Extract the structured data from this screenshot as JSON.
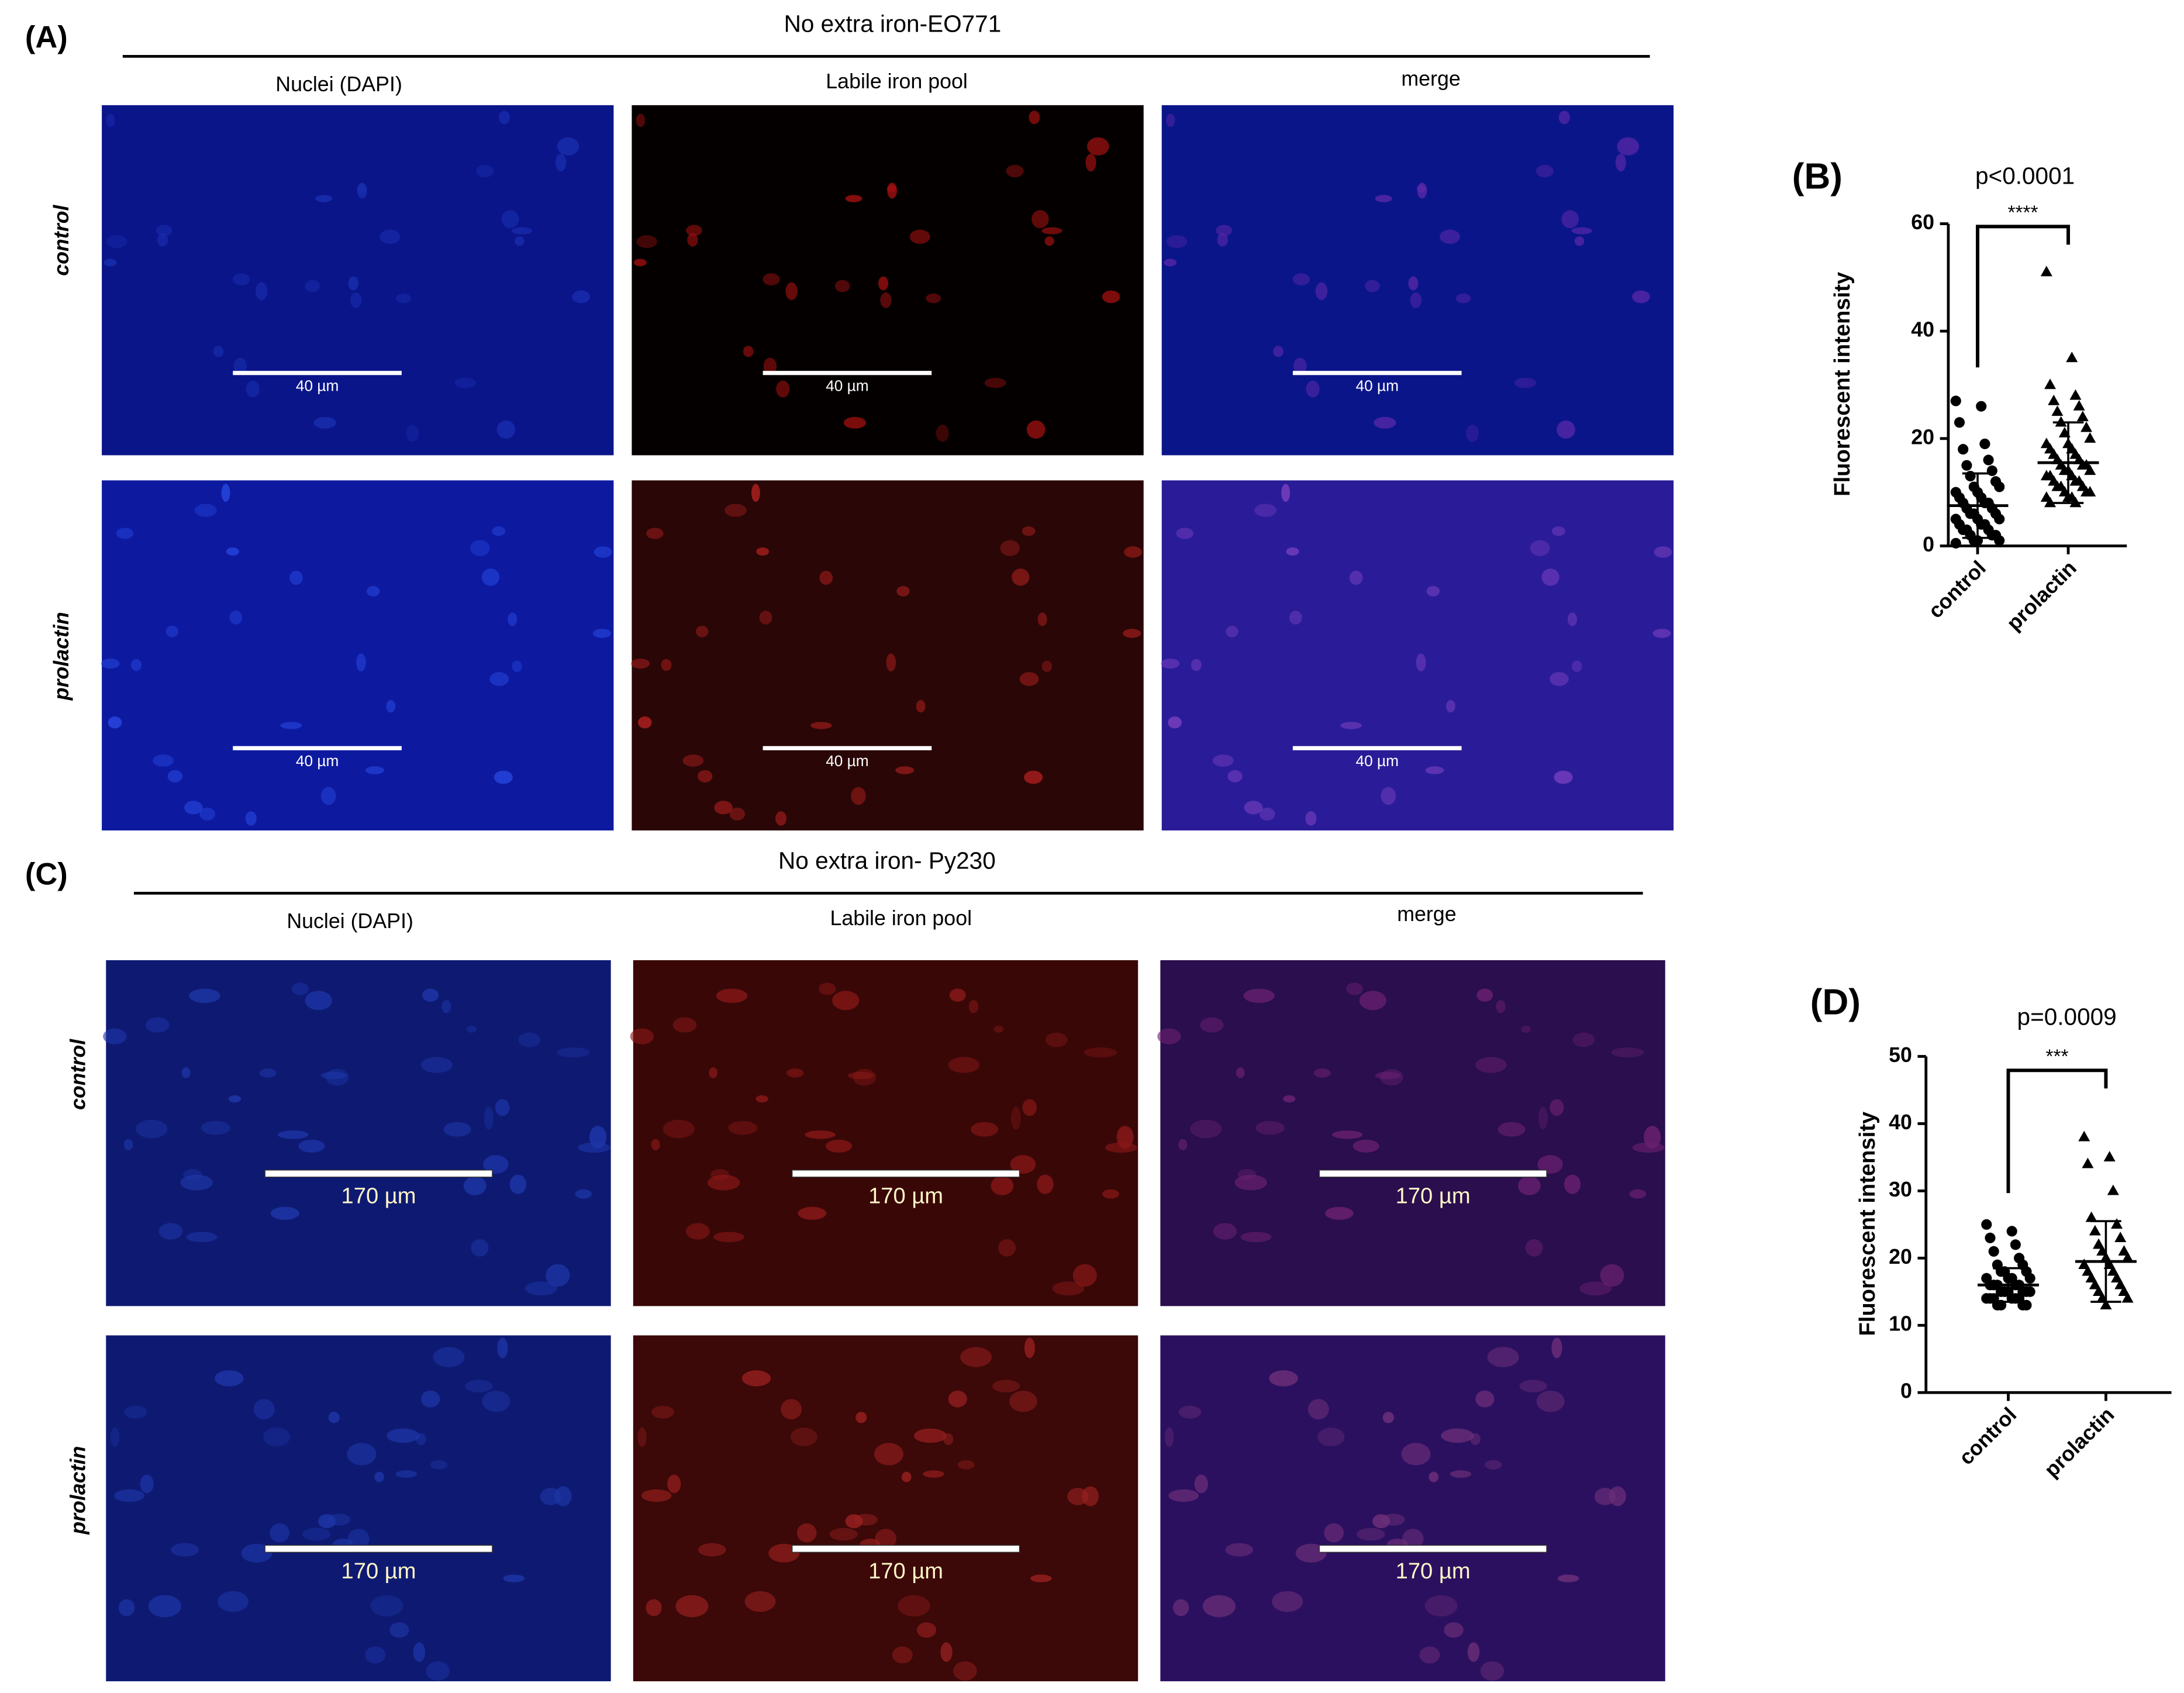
{
  "panels": [
    {
      "label": "(A)",
      "title": "No extra iron-EO771",
      "columns": [
        "Nuclei (DAPI)",
        "Labile iron pool",
        "merge"
      ],
      "rows": [
        "control",
        "prolactin"
      ],
      "scale_bar": "40 µm"
    },
    {
      "label": "(C)",
      "title": "No extra iron- Py230",
      "columns": [
        "Nuclei (DAPI)",
        "Labile iron pool",
        "merge"
      ],
      "rows": [
        "control",
        "prolactin"
      ],
      "scale_bar": "170 µm"
    }
  ],
  "chart_data": [
    {
      "type": "scatter",
      "label": "(B)",
      "title": "p<0.0001",
      "significance": "****",
      "y_label": "Fluorescent intensity",
      "categories": [
        "control",
        "prolactin"
      ],
      "ylim": [
        0,
        60
      ],
      "yticks": [
        0,
        20,
        40,
        60
      ],
      "series": [
        {
          "color": "#000000",
          "marker": "circle",
          "mean": 7.5,
          "sd": 6,
          "values": [
            27,
            26,
            23,
            19,
            18,
            16,
            15,
            14,
            13,
            12,
            11,
            11,
            10,
            10,
            9,
            9,
            8,
            8,
            8,
            7,
            7,
            6,
            6,
            6,
            5,
            5,
            5,
            4,
            4,
            4,
            3,
            3,
            3,
            2,
            2,
            2,
            1,
            1,
            1,
            0.5
          ]
        },
        {
          "color": "#000000",
          "marker": "triangle",
          "mean": 15.5,
          "sd": 7.5,
          "values": [
            51,
            35,
            30,
            28,
            27,
            26,
            25,
            24,
            23,
            22,
            21,
            20,
            19,
            19,
            18,
            18,
            17,
            17,
            16,
            16,
            15,
            15,
            15,
            14,
            14,
            14,
            13,
            13,
            13,
            12,
            12,
            12,
            11,
            11,
            11,
            10,
            10,
            10,
            9,
            9,
            9,
            8,
            8
          ]
        }
      ]
    },
    {
      "type": "scatter",
      "label": "(D)",
      "title": "p=0.0009",
      "significance": "***",
      "y_label": "Fluorescent intensity",
      "categories": [
        "control",
        "prolactin"
      ],
      "ylim": [
        0,
        50
      ],
      "yticks": [
        0,
        10,
        20,
        30,
        40,
        50
      ],
      "series": [
        {
          "color": "#000000",
          "marker": "circle",
          "mean": 16,
          "sd": 2.5,
          "values": [
            25,
            24,
            23,
            22,
            21,
            20,
            19,
            19,
            18,
            18,
            18,
            17,
            17,
            17,
            17,
            16,
            16,
            16,
            16,
            16,
            15,
            15,
            15,
            15,
            15,
            15,
            14,
            14,
            14,
            14,
            14,
            14,
            13,
            13,
            13,
            13
          ]
        },
        {
          "color": "#000000",
          "marker": "triangle",
          "mean": 19.5,
          "sd": 6,
          "values": [
            38,
            35,
            34,
            30,
            26,
            25,
            24,
            23,
            22,
            21,
            21,
            20,
            20,
            19,
            19,
            18,
            18,
            17,
            17,
            16,
            16,
            15,
            15,
            14,
            14,
            13
          ]
        }
      ]
    }
  ]
}
